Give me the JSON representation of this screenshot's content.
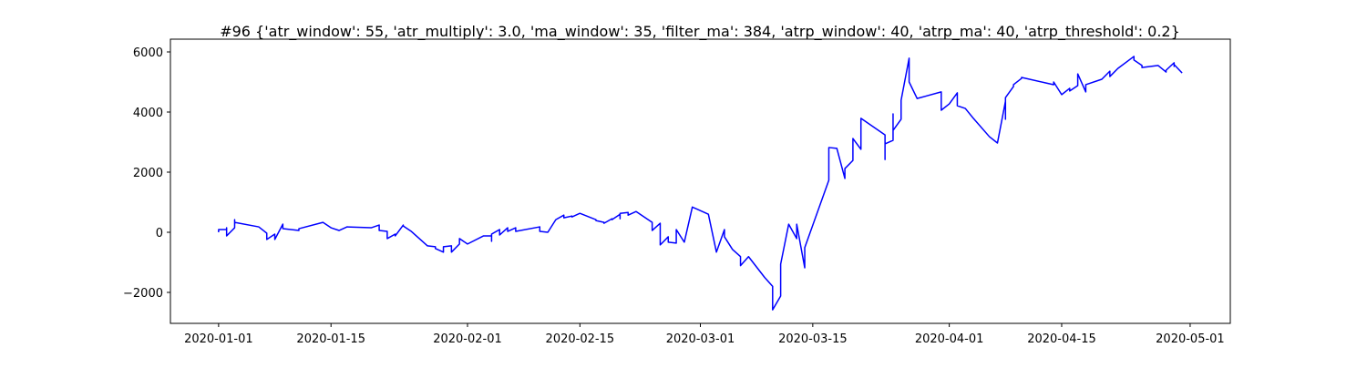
{
  "chart_data": {
    "type": "line",
    "title": "#96 {'atr_window': 55, 'atr_multiply': 3.0, 'ma_window': 35, 'filter_ma': 384, 'atrp_window': 40, 'atrp_ma': 40, 'atrp_threshold': 0.2}",
    "x": [
      "2020-01-01",
      "2020-01-01",
      "2020-01-02",
      "2020-01-02",
      "2020-01-02",
      "2020-01-03",
      "2020-01-03",
      "2020-01-03",
      "2020-01-06",
      "2020-01-07",
      "2020-01-07",
      "2020-01-08",
      "2020-01-08",
      "2020-01-09",
      "2020-01-09",
      "2020-01-11",
      "2020-01-11",
      "2020-01-14",
      "2020-01-15",
      "2020-01-16",
      "2020-01-17",
      "2020-01-20",
      "2020-01-21",
      "2020-01-21",
      "2020-01-22",
      "2020-01-22",
      "2020-01-23",
      "2020-01-23",
      "2020-01-24",
      "2020-01-24",
      "2020-01-25",
      "2020-01-27",
      "2020-01-28",
      "2020-01-28",
      "2020-01-29",
      "2020-01-29",
      "2020-01-30",
      "2020-01-30",
      "2020-01-31",
      "2020-01-31",
      "2020-02-01",
      "2020-02-03",
      "2020-02-04",
      "2020-02-04",
      "2020-02-04",
      "2020-02-05",
      "2020-02-05",
      "2020-02-06",
      "2020-02-06",
      "2020-02-07",
      "2020-02-07",
      "2020-02-10",
      "2020-02-10",
      "2020-02-11",
      "2020-02-12",
      "2020-02-13",
      "2020-02-13",
      "2020-02-14",
      "2020-02-14",
      "2020-02-15",
      "2020-02-17",
      "2020-02-17",
      "2020-02-18",
      "2020-02-18",
      "2020-02-19",
      "2020-02-19",
      "2020-02-20",
      "2020-02-20",
      "2020-02-20",
      "2020-02-21",
      "2020-02-21",
      "2020-02-22",
      "2020-02-24",
      "2020-02-24",
      "2020-02-25",
      "2020-02-25",
      "2020-02-25",
      "2020-02-26",
      "2020-02-26",
      "2020-02-27",
      "2020-02-27",
      "2020-02-28",
      "2020-02-29",
      "2020-03-02",
      "2020-03-03",
      "2020-03-04",
      "2020-03-04",
      "2020-03-05",
      "2020-03-06",
      "2020-03-06",
      "2020-03-07",
      "2020-03-09",
      "2020-03-10",
      "2020-03-10",
      "2020-03-10",
      "2020-03-11",
      "2020-03-11",
      "2020-03-11",
      "2020-03-12",
      "2020-03-13",
      "2020-03-13",
      "2020-03-14",
      "2020-03-14",
      "2020-03-17",
      "2020-03-17",
      "2020-03-18",
      "2020-03-19",
      "2020-03-19",
      "2020-03-20",
      "2020-03-20",
      "2020-03-21",
      "2020-03-21",
      "2020-03-24",
      "2020-03-24",
      "2020-03-24",
      "2020-03-25",
      "2020-03-25",
      "2020-03-25",
      "2020-03-26",
      "2020-03-26",
      "2020-03-27",
      "2020-03-27",
      "2020-03-27",
      "2020-03-28",
      "2020-03-31",
      "2020-03-31",
      "2020-04-01",
      "2020-04-02",
      "2020-04-02",
      "2020-04-03",
      "2020-04-04",
      "2020-04-06",
      "2020-04-07",
      "2020-04-08",
      "2020-04-08",
      "2020-04-08",
      "2020-04-09",
      "2020-04-09",
      "2020-04-10",
      "2020-04-10",
      "2020-04-13",
      "2020-04-14",
      "2020-04-14",
      "2020-04-15",
      "2020-04-16",
      "2020-04-16",
      "2020-04-17",
      "2020-04-17",
      "2020-04-18",
      "2020-04-18",
      "2020-04-20",
      "2020-04-21",
      "2020-04-21",
      "2020-04-22",
      "2020-04-24",
      "2020-04-24",
      "2020-04-25",
      "2020-04-25",
      "2020-04-27",
      "2020-04-28",
      "2020-04-28",
      "2020-04-29",
      "2020-04-29",
      "2020-04-29",
      "2020-04-30"
    ],
    "series": [
      {
        "color": "#0000ff",
        "values": [
          0,
          90,
          90,
          150,
          -120,
          150,
          420,
          330,
          180,
          -30,
          -240,
          -60,
          -240,
          270,
          120,
          60,
          120,
          330,
          150,
          60,
          180,
          150,
          240,
          60,
          30,
          -210,
          -60,
          -120,
          240,
          210,
          30,
          -450,
          -480,
          -540,
          -660,
          -480,
          -450,
          -660,
          -390,
          -210,
          -390,
          -120,
          -120,
          -300,
          -60,
          90,
          -90,
          150,
          30,
          150,
          30,
          180,
          30,
          0,
          420,
          570,
          480,
          540,
          510,
          630,
          420,
          390,
          330,
          300,
          450,
          420,
          600,
          450,
          630,
          660,
          570,
          690,
          330,
          60,
          300,
          90,
          -420,
          -150,
          -330,
          -360,
          90,
          -330,
          840,
          600,
          -660,
          90,
          -150,
          -570,
          -810,
          -1110,
          -810,
          -1500,
          -1800,
          -1890,
          -2580,
          -2120,
          -1700,
          -1060,
          270,
          -210,
          270,
          -1180,
          -510,
          1730,
          2820,
          2790,
          1790,
          2120,
          2390,
          3120,
          2760,
          3790,
          3240,
          2420,
          2940,
          3060,
          3940,
          3390,
          3760,
          4390,
          5790,
          5610,
          5000,
          4450,
          4670,
          4060,
          4270,
          4640,
          4210,
          4120,
          3790,
          3180,
          2970,
          4360,
          3760,
          4480,
          4850,
          4910,
          5120,
          5150,
          4970,
          4910,
          5000,
          4580,
          4790,
          4700,
          4880,
          5270,
          4670,
          4910,
          5090,
          5360,
          5180,
          5450,
          5850,
          5730,
          5550,
          5480,
          5550,
          5330,
          5390,
          5640,
          5520,
          5580,
          5300
        ]
      }
    ],
    "xlim": [
      "2019-12-26",
      "2020-05-06"
    ],
    "xticks": [
      "2020-01-01",
      "2020-01-15",
      "2020-02-01",
      "2020-02-15",
      "2020-03-01",
      "2020-03-15",
      "2020-04-01",
      "2020-04-15",
      "2020-05-01"
    ],
    "ylim": [
      -3030,
      6424
    ],
    "yticks": [
      {
        "value": -2000,
        "label": "−2000"
      },
      0,
      2000,
      4000,
      6000
    ]
  }
}
